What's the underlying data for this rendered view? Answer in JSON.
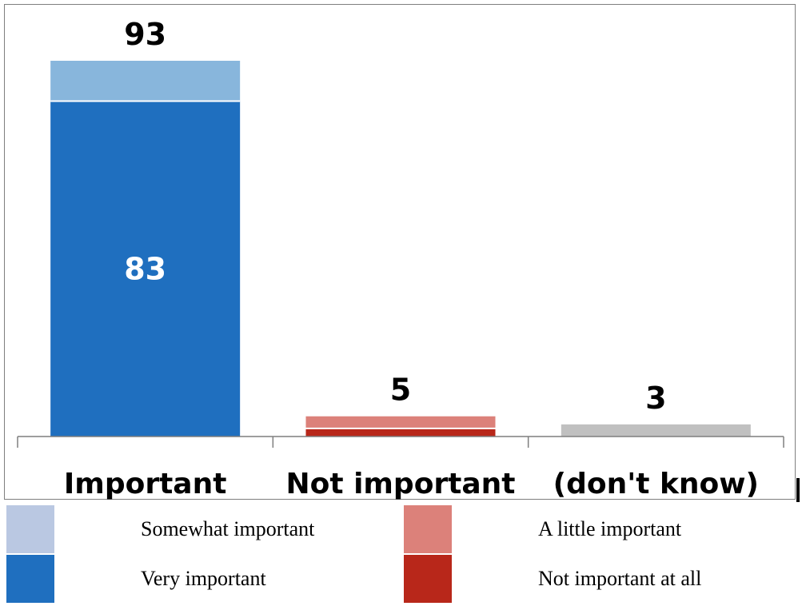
{
  "chart_data": {
    "type": "bar",
    "stacked": true,
    "categories": [
      "Important",
      "Not important",
      "(don't know)"
    ],
    "series": [
      {
        "name": "Very important",
        "color": "#1f6fbf",
        "values": [
          83,
          0,
          0
        ]
      },
      {
        "name": "Somewhat important",
        "color": "#88b6dc",
        "values": [
          10,
          0,
          0
        ]
      },
      {
        "name": "Not important at all",
        "color": "#b8271a",
        "values": [
          0,
          2,
          0
        ]
      },
      {
        "name": "A little important",
        "color": "#dc817a",
        "values": [
          0,
          3,
          0
        ]
      },
      {
        "name": "(don't know)",
        "color": "#c0c0c0",
        "values": [
          0,
          0,
          3
        ]
      }
    ],
    "totals": [
      "93",
      "5",
      "3"
    ],
    "inner_labels": [
      "83",
      "",
      ""
    ],
    "ylim": [
      0,
      100
    ],
    "grid": false,
    "legend_position": "bottom"
  },
  "legend": [
    {
      "label": "Somewhat important",
      "color": "#bac8e2"
    },
    {
      "label": "A little important",
      "color": "#dc817a"
    },
    {
      "label": "Very important",
      "color": "#1f6fbf"
    },
    {
      "label": "Not important at all",
      "color": "#b8271a"
    }
  ]
}
